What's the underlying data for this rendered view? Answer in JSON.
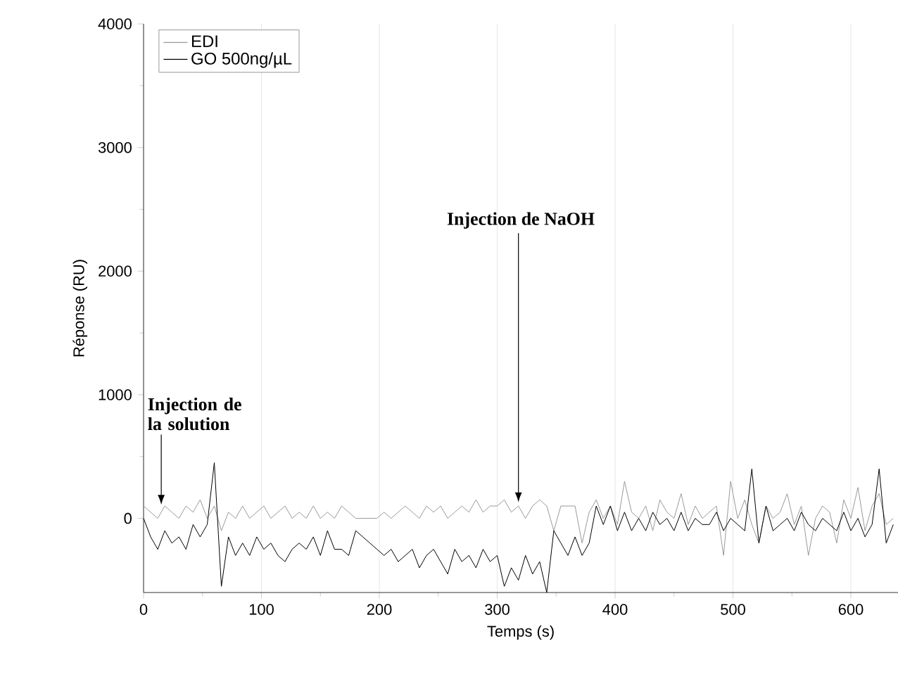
{
  "chart_data": {
    "type": "line",
    "xlabel": "Temps (s)",
    "ylabel": "Réponse (RU)",
    "x": [
      0,
      6,
      12,
      18,
      24,
      30,
      36,
      42,
      48,
      54,
      60,
      66,
      72,
      78,
      84,
      90,
      96,
      102,
      108,
      114,
      120,
      126,
      132,
      138,
      144,
      150,
      156,
      162,
      168,
      174,
      180,
      186,
      192,
      198,
      204,
      210,
      216,
      222,
      228,
      234,
      240,
      246,
      252,
      258,
      264,
      270,
      276,
      282,
      288,
      294,
      300,
      306,
      312,
      318,
      324,
      330,
      336,
      342,
      348,
      354,
      360,
      366,
      372,
      378,
      384,
      390,
      396,
      402,
      408,
      414,
      420,
      426,
      432,
      438,
      444,
      450,
      456,
      462,
      468,
      474,
      480,
      486,
      492,
      498,
      504,
      510,
      516,
      522,
      528,
      534,
      540,
      546,
      552,
      558,
      564,
      570,
      576,
      582,
      588,
      594,
      600,
      606,
      612,
      618,
      624,
      630,
      636
    ],
    "series": [
      {
        "name": "EDI",
        "color": "#999999",
        "values": [
          100,
          50,
          0,
          100,
          50,
          0,
          100,
          50,
          150,
          0,
          100,
          -100,
          50,
          0,
          100,
          0,
          50,
          100,
          0,
          50,
          100,
          0,
          50,
          0,
          100,
          0,
          50,
          0,
          100,
          50,
          0,
          0,
          0,
          0,
          50,
          0,
          50,
          100,
          50,
          0,
          100,
          50,
          100,
          0,
          50,
          100,
          50,
          150,
          50,
          100,
          100,
          150,
          50,
          100,
          0,
          100,
          150,
          100,
          -100,
          100,
          100,
          100,
          -200,
          50,
          150,
          0,
          100,
          -50,
          300,
          50,
          0,
          100,
          -100,
          150,
          50,
          0,
          200,
          -50,
          100,
          0,
          50,
          100,
          -300,
          300,
          0,
          150,
          -50,
          -200,
          100,
          0,
          50,
          200,
          -50,
          100,
          -300,
          0,
          100,
          50,
          -200,
          150,
          0,
          250,
          -100,
          100,
          200,
          -50,
          0
        ]
      },
      {
        "name": "GO 500ng/µL",
        "color": "#000000",
        "values": [
          0,
          -150,
          -250,
          -100,
          -200,
          -150,
          -250,
          -50,
          -150,
          -50,
          450,
          -550,
          -150,
          -300,
          -200,
          -300,
          -150,
          -250,
          -200,
          -300,
          -350,
          -250,
          -200,
          -250,
          -150,
          -300,
          -100,
          -250,
          -250,
          -300,
          -100,
          -150,
          -200,
          -250,
          -300,
          -250,
          -350,
          -300,
          -250,
          -400,
          -300,
          -250,
          -350,
          -450,
          -250,
          -350,
          -300,
          -400,
          -250,
          -350,
          -300,
          -550,
          -400,
          -500,
          -300,
          -450,
          -350,
          -600,
          -100,
          -200,
          -300,
          -150,
          -300,
          -200,
          100,
          -50,
          100,
          -100,
          50,
          -100,
          0,
          -100,
          50,
          -50,
          0,
          -100,
          50,
          -100,
          0,
          -50,
          -50,
          50,
          -100,
          0,
          -50,
          -100,
          400,
          -200,
          100,
          -100,
          -50,
          0,
          -100,
          50,
          -50,
          -100,
          0,
          -50,
          -100,
          50,
          -100,
          0,
          -150,
          -50,
          400,
          -200,
          -50
        ]
      }
    ],
    "xlim": [
      0,
      640
    ],
    "ylim": [
      -600,
      4000
    ],
    "xticks": [
      0,
      100,
      200,
      300,
      400,
      500,
      600
    ],
    "yticks": [
      0,
      1000,
      2000,
      3000,
      4000
    ],
    "grid": "x",
    "legend": "top left",
    "annotations": [
      {
        "text": "Injection de la solution",
        "x": 15,
        "y": 110
      },
      {
        "text": "Injection de NaOH",
        "x": 318,
        "y": 130
      }
    ]
  }
}
